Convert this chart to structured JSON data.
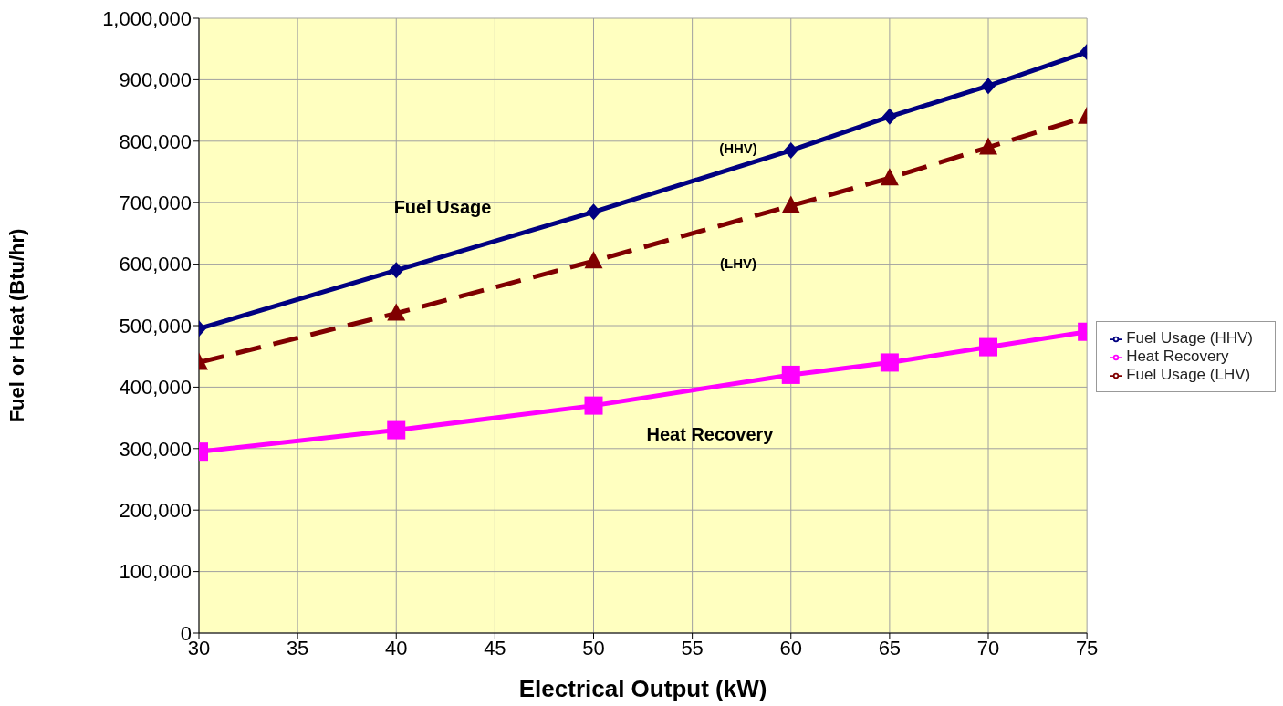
{
  "chart_data": {
    "type": "line",
    "xlabel": "Electrical Output (kW)",
    "ylabel": "Fuel or Heat (Btu/hr)",
    "x": [
      30,
      40,
      50,
      60,
      65,
      70,
      75
    ],
    "series": [
      {
        "name": "Fuel Usage (HHV)",
        "color": "#000080",
        "marker": "diamond",
        "line_style": "solid",
        "values": [
          495000,
          590000,
          685000,
          785000,
          840000,
          890000,
          945000
        ]
      },
      {
        "name": "Heat Recovery",
        "color": "#ff00ff",
        "marker": "square",
        "line_style": "solid",
        "values": [
          295000,
          330000,
          370000,
          420000,
          440000,
          465000,
          490000
        ]
      },
      {
        "name": "Fuel Usage (LHV)",
        "color": "#800000",
        "marker": "triangle",
        "line_style": "dashed",
        "values": [
          440000,
          520000,
          605000,
          695000,
          740000,
          790000,
          840000
        ]
      }
    ],
    "xlim": [
      30,
      75
    ],
    "xticks": [
      30,
      35,
      40,
      45,
      50,
      55,
      60,
      65,
      70,
      75
    ],
    "ylim": [
      0,
      1000000
    ],
    "yticks": [
      {
        "value": 0,
        "label": "0"
      },
      {
        "value": 100000,
        "label": "100,000"
      },
      {
        "value": 200000,
        "label": "200,000"
      },
      {
        "value": 300000,
        "label": "300,000"
      },
      {
        "value": 400000,
        "label": "400,000"
      },
      {
        "value": 500000,
        "label": "500,000"
      },
      {
        "value": 600000,
        "label": "600,000"
      },
      {
        "value": 700000,
        "label": "700,000"
      },
      {
        "value": 800000,
        "label": "800,000"
      },
      {
        "value": 900000,
        "label": "900,000"
      },
      {
        "value": 1000000,
        "label": "1,000,000"
      }
    ],
    "annotations": [
      "Fuel Usage",
      "(HHV)",
      "(LHV)",
      "Heat Recovery"
    ],
    "grid": true,
    "legend": "right"
  }
}
